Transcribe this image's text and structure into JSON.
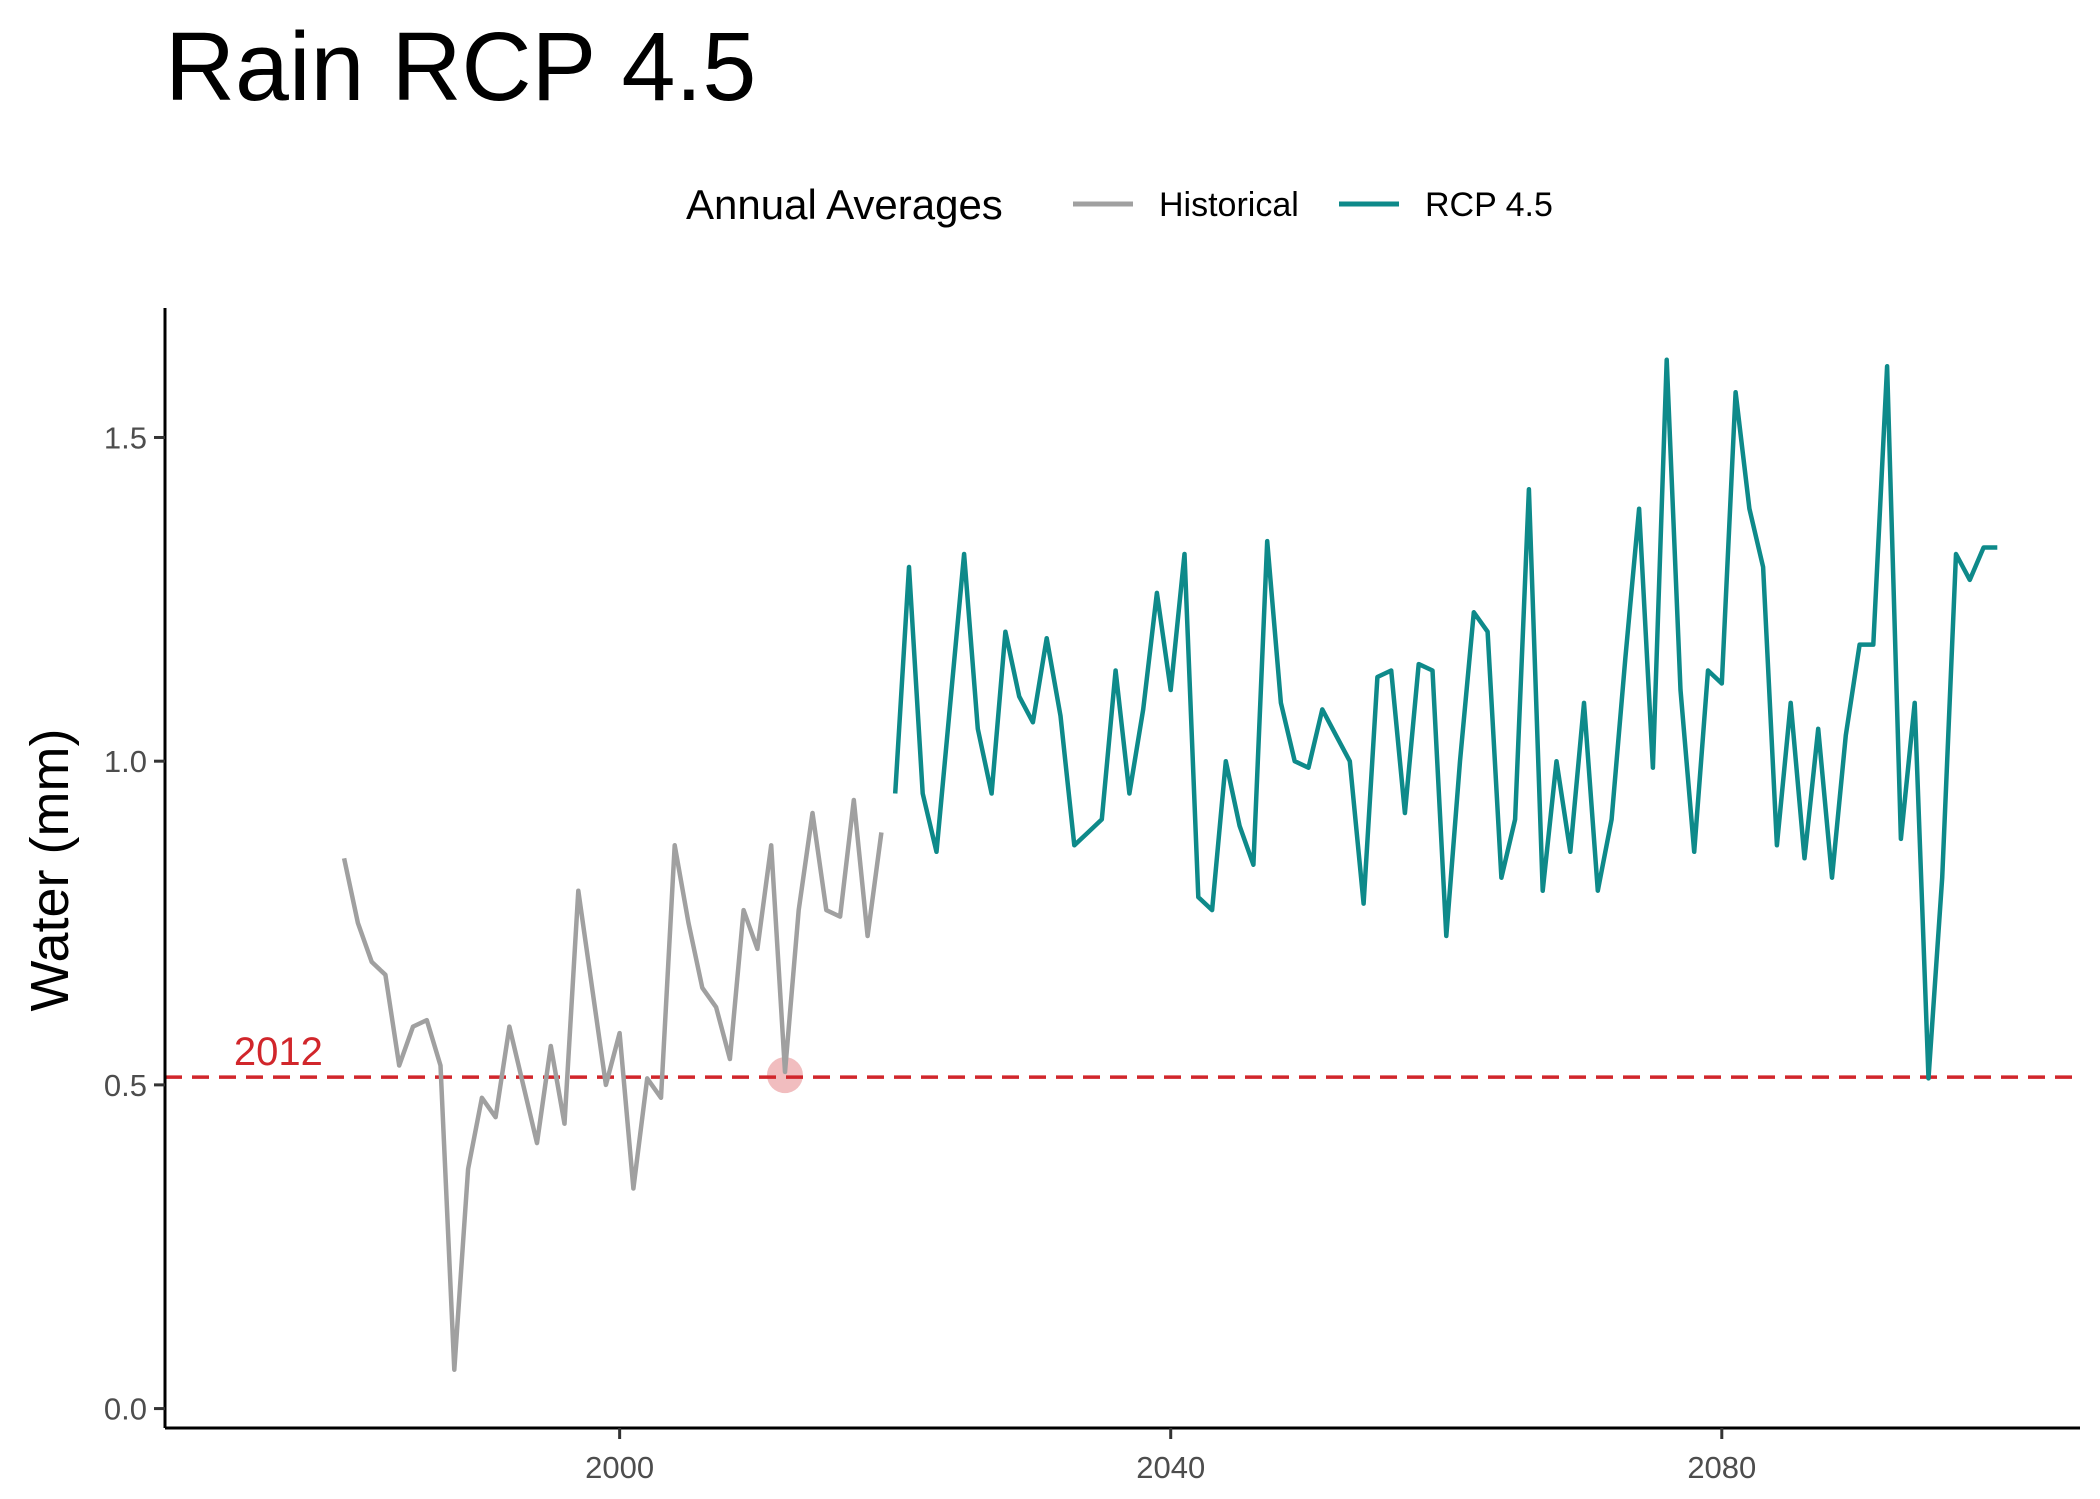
{
  "chart_data": {
    "type": "line",
    "title": "Rain RCP 4.5",
    "xlabel": "",
    "ylabel": "Water (mm)",
    "xlim": [
      1967,
      2106
    ],
    "ylim": [
      -0.03,
      1.7
    ],
    "x_ticks": [
      2000,
      2040,
      2080
    ],
    "y_ticks": [
      0.0,
      0.5,
      1.0,
      1.5
    ],
    "y_tick_labels": [
      "0.0",
      "0.5",
      "1.0",
      "1.5"
    ],
    "grid": false,
    "legend": {
      "title": "Annual Averages",
      "position": "top",
      "entries": [
        "Historical",
        "RCP 4.5"
      ]
    },
    "colors": {
      "Historical": "#a0a0a0",
      "RCP 4.5": "#0e8a8a",
      "reference": "#d1262b"
    },
    "series": [
      {
        "name": "Historical",
        "x": [
          1980,
          1981,
          1982,
          1983,
          1984,
          1985,
          1986,
          1987,
          1988,
          1989,
          1990,
          1991,
          1992,
          1993,
          1994,
          1995,
          1996,
          1997,
          1998,
          1999,
          2000,
          2001,
          2002,
          2003,
          2004,
          2005,
          2006,
          2007,
          2008,
          2009,
          2010,
          2011,
          2012,
          2013,
          2014,
          2015,
          2016,
          2017,
          2018,
          2019
        ],
        "values": [
          0.85,
          0.75,
          0.69,
          0.67,
          0.53,
          0.59,
          0.6,
          0.53,
          0.06,
          0.37,
          0.48,
          0.45,
          0.59,
          0.5,
          0.41,
          0.56,
          0.44,
          0.8,
          0.65,
          0.5,
          0.58,
          0.34,
          0.51,
          0.48,
          0.87,
          0.75,
          0.65,
          0.62,
          0.54,
          0.77,
          0.71,
          0.87,
          0.52,
          0.77,
          0.92,
          0.77,
          0.76,
          0.94,
          0.73,
          0.89
        ]
      },
      {
        "name": "RCP 4.5",
        "x": [
          2020,
          2021,
          2022,
          2023,
          2024,
          2025,
          2026,
          2027,
          2028,
          2029,
          2030,
          2031,
          2032,
          2033,
          2034,
          2035,
          2036,
          2037,
          2038,
          2039,
          2040,
          2041,
          2042,
          2043,
          2044,
          2045,
          2046,
          2047,
          2048,
          2049,
          2050,
          2051,
          2052,
          2053,
          2054,
          2055,
          2056,
          2057,
          2058,
          2059,
          2060,
          2061,
          2062,
          2063,
          2064,
          2065,
          2066,
          2067,
          2068,
          2069,
          2070,
          2071,
          2072,
          2073,
          2074,
          2075,
          2076,
          2077,
          2078,
          2079,
          2080,
          2081,
          2082,
          2083,
          2084,
          2085,
          2086,
          2087,
          2088,
          2089,
          2090,
          2091,
          2092,
          2093,
          2094,
          2095,
          2096,
          2097,
          2098,
          2099,
          2100
        ],
        "values": [
          0.95,
          1.3,
          0.95,
          0.86,
          1.09,
          1.32,
          1.05,
          0.95,
          1.2,
          1.1,
          1.06,
          1.19,
          1.07,
          0.87,
          0.89,
          0.91,
          1.14,
          0.95,
          1.08,
          1.26,
          1.11,
          1.32,
          0.79,
          0.77,
          1.0,
          0.9,
          0.84,
          1.34,
          1.09,
          1.0,
          0.99,
          1.08,
          1.04,
          1.0,
          0.78,
          1.13,
          1.14,
          0.92,
          1.15,
          1.14,
          0.73,
          1.0,
          1.23,
          1.2,
          0.82,
          0.91,
          1.42,
          0.8,
          1.0,
          0.86,
          1.09,
          0.8,
          0.91,
          1.16,
          1.39,
          0.99,
          1.62,
          1.11,
          0.86,
          1.14,
          1.12,
          1.57,
          1.39,
          1.3,
          0.87,
          1.09,
          0.85,
          1.05,
          0.82,
          1.04,
          1.18,
          1.18,
          1.61,
          0.88,
          1.09,
          0.51,
          0.82,
          1.32,
          1.28,
          1.33,
          1.33
        ]
      }
    ],
    "annotations": [
      {
        "type": "hline",
        "y": 0.512,
        "style": "dashed",
        "label": "2012",
        "label_x": 1972
      },
      {
        "type": "point",
        "x": 2012,
        "y": 0.515
      }
    ]
  }
}
